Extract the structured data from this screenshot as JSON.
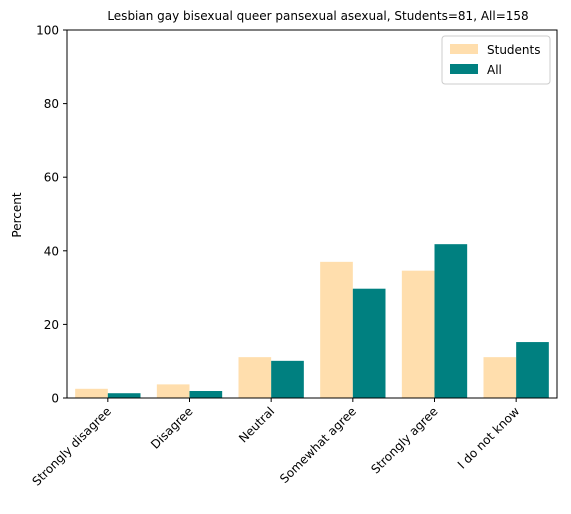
{
  "chart_data": {
    "type": "bar",
    "title": "Lesbian gay bisexual queer pansexual asexual, Students=81, All=158",
    "xlabel": "",
    "ylabel": "Percent",
    "ylim": [
      0,
      100
    ],
    "yticks": [
      0,
      20,
      40,
      60,
      80,
      100
    ],
    "categories": [
      "Strongly disagree",
      "Disagree",
      "Neutral",
      "Somewhat agree",
      "Strongly agree",
      "I do not know"
    ],
    "series": [
      {
        "name": "Students",
        "color": "#FFDEAD",
        "values": [
          2.5,
          3.7,
          11.1,
          37.0,
          34.6,
          11.1
        ]
      },
      {
        "name": "All",
        "color": "#008080",
        "values": [
          1.3,
          1.9,
          10.1,
          29.7,
          41.8,
          15.2
        ]
      }
    ],
    "legend": "top-right",
    "grid": false
  }
}
